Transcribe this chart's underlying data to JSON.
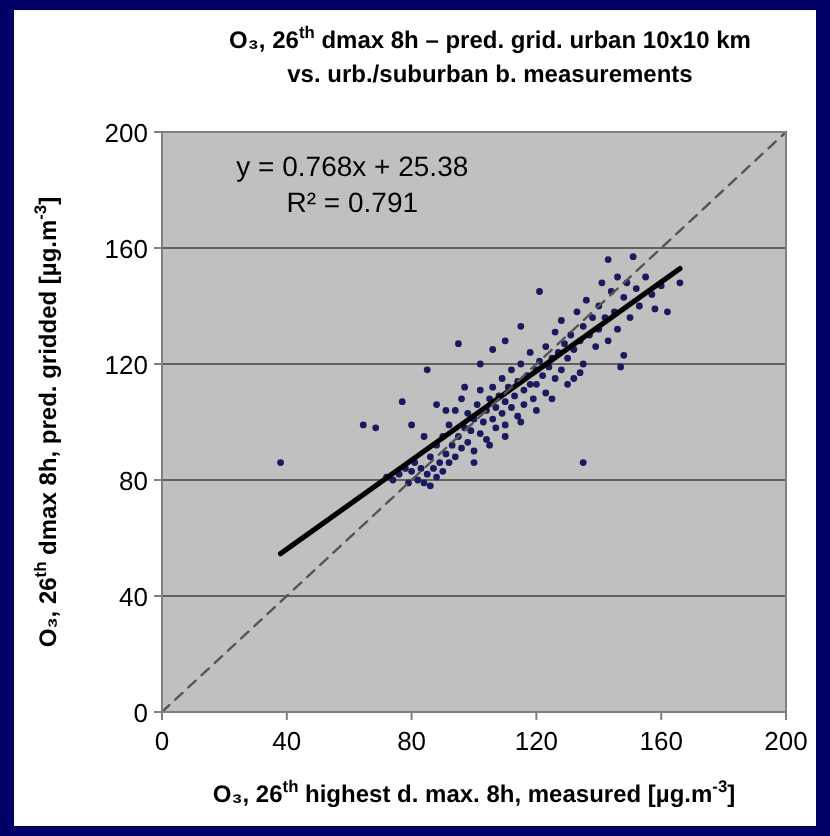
{
  "chart_data": {
    "type": "scatter",
    "title": "O₃, 26$^{th}$ dmax 8h – pred. grid. urban 10x10 km",
    "subtitle": "vs. urb./suburban b. measurements",
    "xlabel": "O₃, 26$^{th}$ highest d. max. 8h, measured  [µg.m$^{-3}$]",
    "ylabel": "O₃, 26$^{th}$ dmax 8h, pred. gridded  [µg.m$^{-3}$]",
    "xlim": [
      0,
      200
    ],
    "ylim": [
      0,
      200
    ],
    "xticks": [
      0,
      40,
      80,
      120,
      160,
      200
    ],
    "yticks": [
      0,
      40,
      80,
      120,
      160,
      200
    ],
    "grid": "y",
    "annotations": [
      "y = 0.768x + 25.38",
      "R² = 0.791"
    ],
    "series": [
      {
        "color": "#1a1a5e",
        "marker": "circle",
        "x": [
          72,
          74,
          76,
          78,
          79,
          80,
          81,
          82,
          83,
          84,
          85,
          86,
          86,
          87,
          88,
          88,
          89,
          90,
          90,
          91,
          92,
          92,
          93,
          94,
          94,
          95,
          96,
          96,
          97,
          98,
          98,
          99,
          100,
          100,
          101,
          102,
          102,
          103,
          104,
          104,
          105,
          106,
          106,
          107,
          107,
          108,
          109,
          109,
          110,
          110,
          111,
          112,
          112,
          113,
          114,
          114,
          115,
          116,
          116,
          117,
          118,
          118,
          119,
          120,
          120,
          121,
          122,
          123,
          123,
          124,
          125,
          126,
          126,
          127,
          128,
          128,
          129,
          130,
          131,
          132,
          132,
          133,
          134,
          135,
          135,
          136,
          137,
          138,
          139,
          140,
          140,
          141,
          142,
          143,
          144,
          145,
          146,
          146,
          147,
          148,
          148,
          149,
          150,
          151,
          152,
          153,
          155,
          157,
          158,
          160,
          162,
          166,
          143,
          115,
          121,
          95,
          85,
          77,
          64.5,
          68.5,
          38,
          135,
          80,
          84,
          88,
          91,
          97,
          102,
          106,
          110,
          100,
          105,
          110,
          115,
          120,
          125,
          130,
          134
        ],
        "values": [
          81,
          80,
          82,
          84,
          79,
          83,
          86,
          80,
          84,
          79,
          82,
          78,
          88,
          84,
          81,
          92,
          86,
          83,
          95,
          89,
          86,
          99,
          92,
          88,
          104,
          95,
          91,
          108,
          98,
          93,
          103,
          97,
          90,
          101,
          106,
          96,
          111,
          100,
          104,
          94,
          108,
          101,
          112,
          98,
          105,
          109,
          103,
          115,
          107,
          99,
          112,
          105,
          118,
          109,
          114,
          102,
          120,
          111,
          106,
          116,
          113,
          124,
          108,
          118,
          113,
          121,
          116,
          110,
          126,
          119,
          122,
          115,
          131,
          124,
          118,
          135,
          127,
          122,
          130,
          125,
          115,
          138,
          128,
          133,
          120,
          142,
          130,
          136,
          126,
          140,
          132,
          148,
          136,
          128,
          145,
          138,
          150,
          132,
          119,
          143,
          123,
          148,
          136,
          157,
          146,
          140,
          150,
          144,
          139,
          147,
          138,
          148,
          156,
          133,
          145,
          127,
          118,
          107,
          99,
          98,
          86,
          86,
          99,
          95,
          106,
          104,
          112,
          120,
          125,
          128,
          86,
          92,
          95,
          100,
          104,
          108,
          113,
          117
        ]
      },
      {
        "type": "line",
        "color": "#000000",
        "marker": "none",
        "line_style": "solid",
        "x": [
          38,
          166
        ],
        "values": [
          54.6,
          152.9
        ]
      },
      {
        "type": "line",
        "color": "#555555",
        "marker": "none",
        "line_style": "dashed",
        "x": [
          0,
          200
        ],
        "values": [
          0,
          200
        ]
      }
    ]
  }
}
